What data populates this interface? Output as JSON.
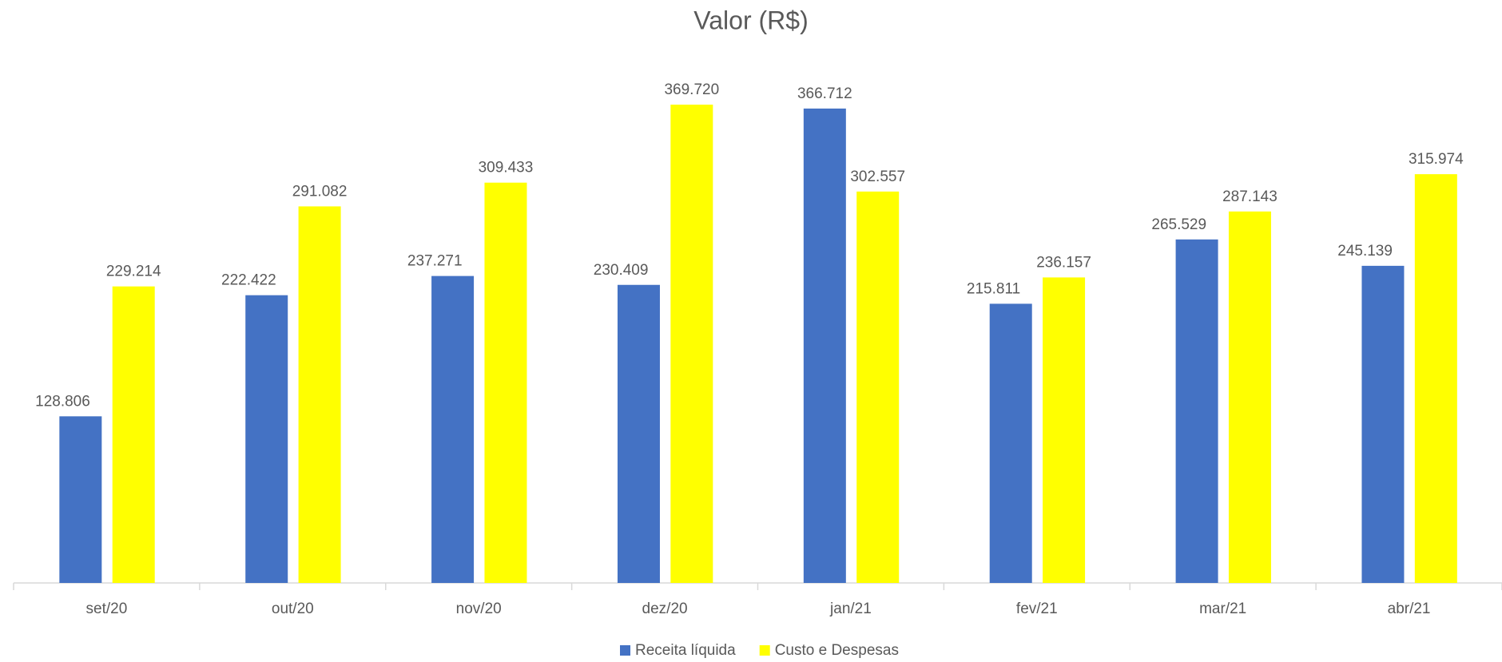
{
  "chart_data": {
    "type": "bar",
    "title": "Valor (R$)",
    "categories": [
      "set/20",
      "out/20",
      "nov/20",
      "dez/20",
      "jan/21",
      "fev/21",
      "mar/21",
      "abr/21"
    ],
    "series": [
      {
        "name": "Receita líquida",
        "color": "#4472c4",
        "values": [
          128806,
          222422,
          237271,
          230409,
          366712,
          215811,
          265529,
          245139
        ],
        "value_labels": [
          "128.806",
          "222.422",
          "237.271",
          "230.409",
          "366.712",
          "215.811",
          "265.529",
          "245.139"
        ]
      },
      {
        "name": "Custo e Despesas",
        "color": "#ffff00",
        "values": [
          229214,
          291082,
          309433,
          369720,
          302557,
          236157,
          287143,
          315974
        ],
        "value_labels": [
          "229.214",
          "291.082",
          "309.433",
          "369.720",
          "302.557",
          "236.157",
          "287.143",
          "315.974"
        ]
      }
    ],
    "ylim": [
      0,
      400000
    ],
    "legend": "bottom"
  }
}
